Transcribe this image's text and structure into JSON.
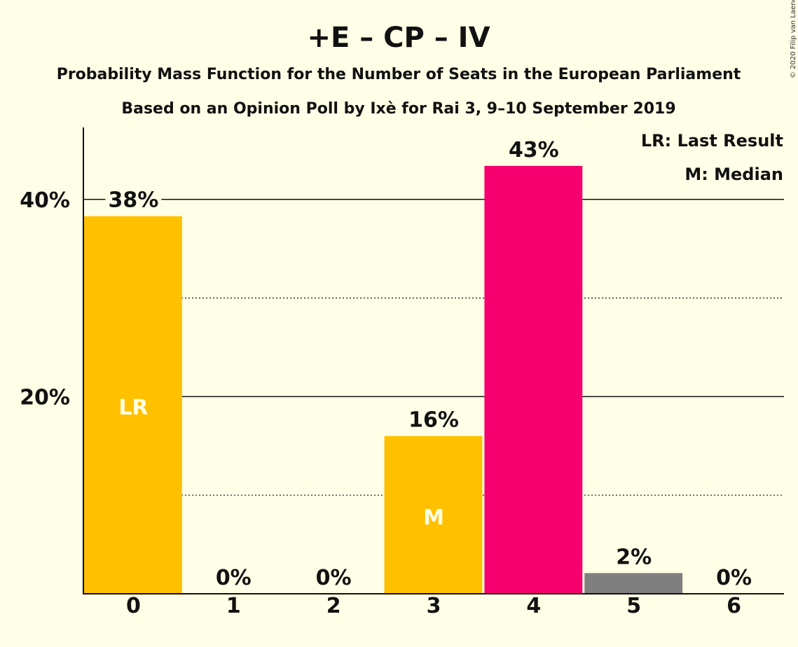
{
  "title": "+E – CP – IV",
  "subtitle1": "Probability Mass Function for the Number of Seats in the European Parliament",
  "subtitle2": "Based on an Opinion Poll by Ixè for Rai 3, 9–10 September 2019",
  "copyright": "© 2020 Filip van Laenen",
  "legend": {
    "lr": "LR: Last Result",
    "m": "M: Median"
  },
  "chart_data": {
    "type": "bar",
    "categories": [
      "0",
      "1",
      "2",
      "3",
      "4",
      "5",
      "6"
    ],
    "values": [
      38.3,
      0,
      0,
      16,
      43.4,
      2.1,
      0
    ],
    "labels": [
      "38%",
      "0%",
      "0%",
      "16%",
      "43%",
      "2%",
      "0%"
    ],
    "bar_colors": [
      "#FFC000",
      "#FFC000",
      "#FFC000",
      "#FFC000",
      "#F5006E",
      "#7F7F7F",
      "#7F7F7F"
    ],
    "inner_labels": {
      "0": "LR",
      "3": "M"
    },
    "ylim": [
      0,
      47.3
    ],
    "yticks": [
      {
        "value": 20,
        "label": "20%"
      },
      {
        "value": 40,
        "label": "40%"
      }
    ],
    "minor_gridlines": [
      10,
      30
    ],
    "grid": true,
    "legend_position": "top-right"
  }
}
